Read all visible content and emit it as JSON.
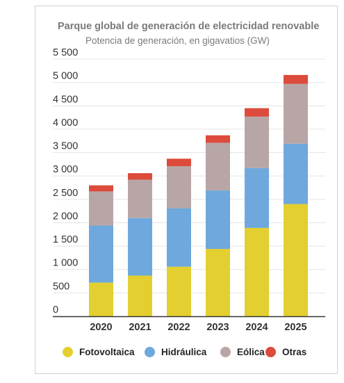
{
  "chart_data": {
    "type": "bar",
    "stacked": true,
    "title": "Parque global de generación de electricidad renovable",
    "subtitle": "Potencia de generación, en gigavatios (GW)",
    "categories": [
      "2020",
      "2021",
      "2022",
      "2023",
      "2024",
      "2025"
    ],
    "series": [
      {
        "name": "Fotovoltaica",
        "color": "#e3cf2f",
        "values": [
          720,
          870,
          1060,
          1440,
          1890,
          2400
        ]
      },
      {
        "name": "Hidráulica",
        "color": "#6ea8dc",
        "values": [
          1220,
          1230,
          1250,
          1250,
          1280,
          1290
        ]
      },
      {
        "name": "Eólica",
        "color": "#b8a6a6",
        "values": [
          730,
          820,
          900,
          1020,
          1100,
          1280
        ]
      },
      {
        "name": "Otras",
        "color": "#dc4b3b",
        "values": [
          130,
          140,
          160,
          160,
          180,
          190
        ]
      }
    ],
    "yticks": [
      "0",
      "500",
      "1 000",
      "1 500",
      "2 000",
      "2 500",
      "3 000",
      "3 500",
      "4 000",
      "4 500",
      "5 000",
      "5 500"
    ],
    "ylim": [
      0,
      5500
    ],
    "grid": true,
    "legend_position": "bottom"
  }
}
